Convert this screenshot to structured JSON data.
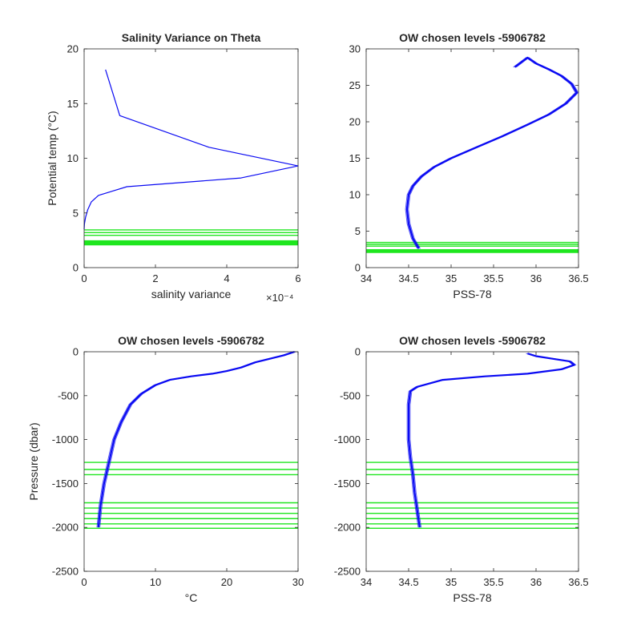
{
  "colors": {
    "profiles": "#0a0af2",
    "chosen_levels": "#1ee61e",
    "axes": "#262626"
  },
  "chart_data": [
    {
      "type": "line",
      "title": "Salinity Variance on Theta",
      "xlabel": "salinity variance",
      "ylabel": "Potential temp (°C)",
      "x_exponent_label": "×10⁻⁴",
      "xlim": [
        0,
        0.0006
      ],
      "ylim": [
        0,
        20
      ],
      "xticks": [
        0,
        0.0002,
        0.0004,
        0.0006
      ],
      "xtick_labels": [
        "0",
        "2",
        "4",
        "6"
      ],
      "yticks": [
        0,
        5,
        10,
        15,
        20
      ],
      "ytick_labels": [
        "0",
        "5",
        "10",
        "15",
        "20"
      ],
      "series": [
        {
          "x": [
            6e-05,
            0.0001,
            0.00035,
            0.0006,
            0.00044,
            0.00012,
            8e-05,
            4e-05,
            2e-05,
            1e-05,
            4e-06,
            1e-06,
            0
          ],
          "y": [
            18.1,
            13.9,
            11.0,
            9.3,
            8.2,
            7.4,
            7.0,
            6.6,
            6.0,
            5.3,
            4.6,
            4.0,
            3.5
          ]
        }
      ],
      "hlines": [
        3.45,
        3.2,
        2.95,
        2.45,
        2.38,
        2.32,
        2.26,
        2.2,
        2.14,
        2.08
      ]
    },
    {
      "type": "line",
      "title": "OW chosen levels -5906782",
      "xlabel": "PSS-78",
      "ylabel": "",
      "xlim": [
        34,
        36.5
      ],
      "ylim": [
        0,
        30
      ],
      "xticks": [
        34,
        34.5,
        35,
        35.5,
        36,
        36.5
      ],
      "xtick_labels": [
        "34",
        "34.5",
        "35",
        "35.5",
        "36",
        "36.5"
      ],
      "yticks": [
        0,
        5,
        10,
        15,
        20,
        25,
        30
      ],
      "ytick_labels": [
        "0",
        "5",
        "10",
        "15",
        "20",
        "25",
        "30"
      ],
      "series": [
        {
          "x": [
            34.62,
            34.55,
            34.5,
            34.48,
            34.5,
            34.55,
            34.65,
            34.8,
            35.0,
            35.3,
            35.6,
            35.9,
            36.15,
            36.35,
            36.48,
            36.42,
            36.3,
            36.15,
            36.0,
            35.9,
            35.75
          ],
          "y": [
            2.6,
            4.0,
            6.0,
            8.0,
            10.0,
            11.2,
            12.5,
            13.8,
            15.0,
            16.5,
            18.0,
            19.6,
            21.0,
            22.5,
            24.0,
            25.2,
            26.3,
            27.2,
            28.0,
            28.8,
            27.5
          ]
        }
      ],
      "hlines": [
        3.45,
        3.2,
        2.95,
        2.45,
        2.38,
        2.32,
        2.26,
        2.2,
        2.14,
        2.08
      ]
    },
    {
      "type": "line",
      "title": "OW chosen levels -5906782",
      "xlabel": "°C",
      "ylabel": "Pressure (dbar)",
      "xlim": [
        0,
        30
      ],
      "ylim": [
        -2500,
        0
      ],
      "xticks": [
        0,
        10,
        20,
        30
      ],
      "xtick_labels": [
        "0",
        "10",
        "20",
        "30"
      ],
      "yticks": [
        -2500,
        -2000,
        -1500,
        -1000,
        -500,
        0
      ],
      "ytick_labels": [
        "-2500",
        "-2000",
        "-1500",
        "-1000",
        "-500",
        "0"
      ],
      "series": [
        {
          "x": [
            2.0,
            2.3,
            2.8,
            3.5,
            4.2,
            5.2,
            6.5,
            8.0,
            10.0,
            12.0,
            15.0,
            18.0,
            20.0,
            22.0,
            24.0,
            26.0,
            28.0,
            29.5
          ],
          "y": [
            -2000,
            -1750,
            -1500,
            -1250,
            -1000,
            -800,
            -600,
            -480,
            -380,
            -320,
            -280,
            -250,
            -220,
            -180,
            -120,
            -80,
            -40,
            0
          ]
        }
      ],
      "hlines": [
        -1260,
        -1340,
        -1400,
        -1720,
        -1780,
        -1840,
        -1900,
        -1960,
        -2010
      ]
    },
    {
      "type": "line",
      "title": "OW chosen levels -5906782",
      "xlabel": "PSS-78",
      "ylabel": "",
      "xlim": [
        34,
        36.5
      ],
      "ylim": [
        -2500,
        0
      ],
      "xticks": [
        34,
        34.5,
        35,
        35.5,
        36,
        36.5
      ],
      "xtick_labels": [
        "34",
        "34.5",
        "35",
        "35.5",
        "36",
        "36.5"
      ],
      "yticks": [
        -2500,
        -2000,
        -1500,
        -1000,
        -500,
        0
      ],
      "ytick_labels": [
        "-2500",
        "-2000",
        "-1500",
        "-1000",
        "-500",
        "0"
      ],
      "series": [
        {
          "x": [
            34.63,
            34.6,
            34.57,
            34.55,
            34.52,
            34.5,
            34.5,
            34.5,
            34.52,
            34.6,
            34.9,
            35.4,
            35.9,
            36.3,
            36.45,
            36.4,
            36.2,
            36.0,
            35.9
          ],
          "y": [
            -2000,
            -1800,
            -1600,
            -1400,
            -1200,
            -1000,
            -800,
            -600,
            -450,
            -400,
            -320,
            -280,
            -250,
            -200,
            -150,
            -110,
            -80,
            -50,
            -20
          ]
        }
      ],
      "hlines": [
        -1260,
        -1340,
        -1400,
        -1720,
        -1780,
        -1840,
        -1900,
        -1960,
        -2010
      ]
    }
  ]
}
